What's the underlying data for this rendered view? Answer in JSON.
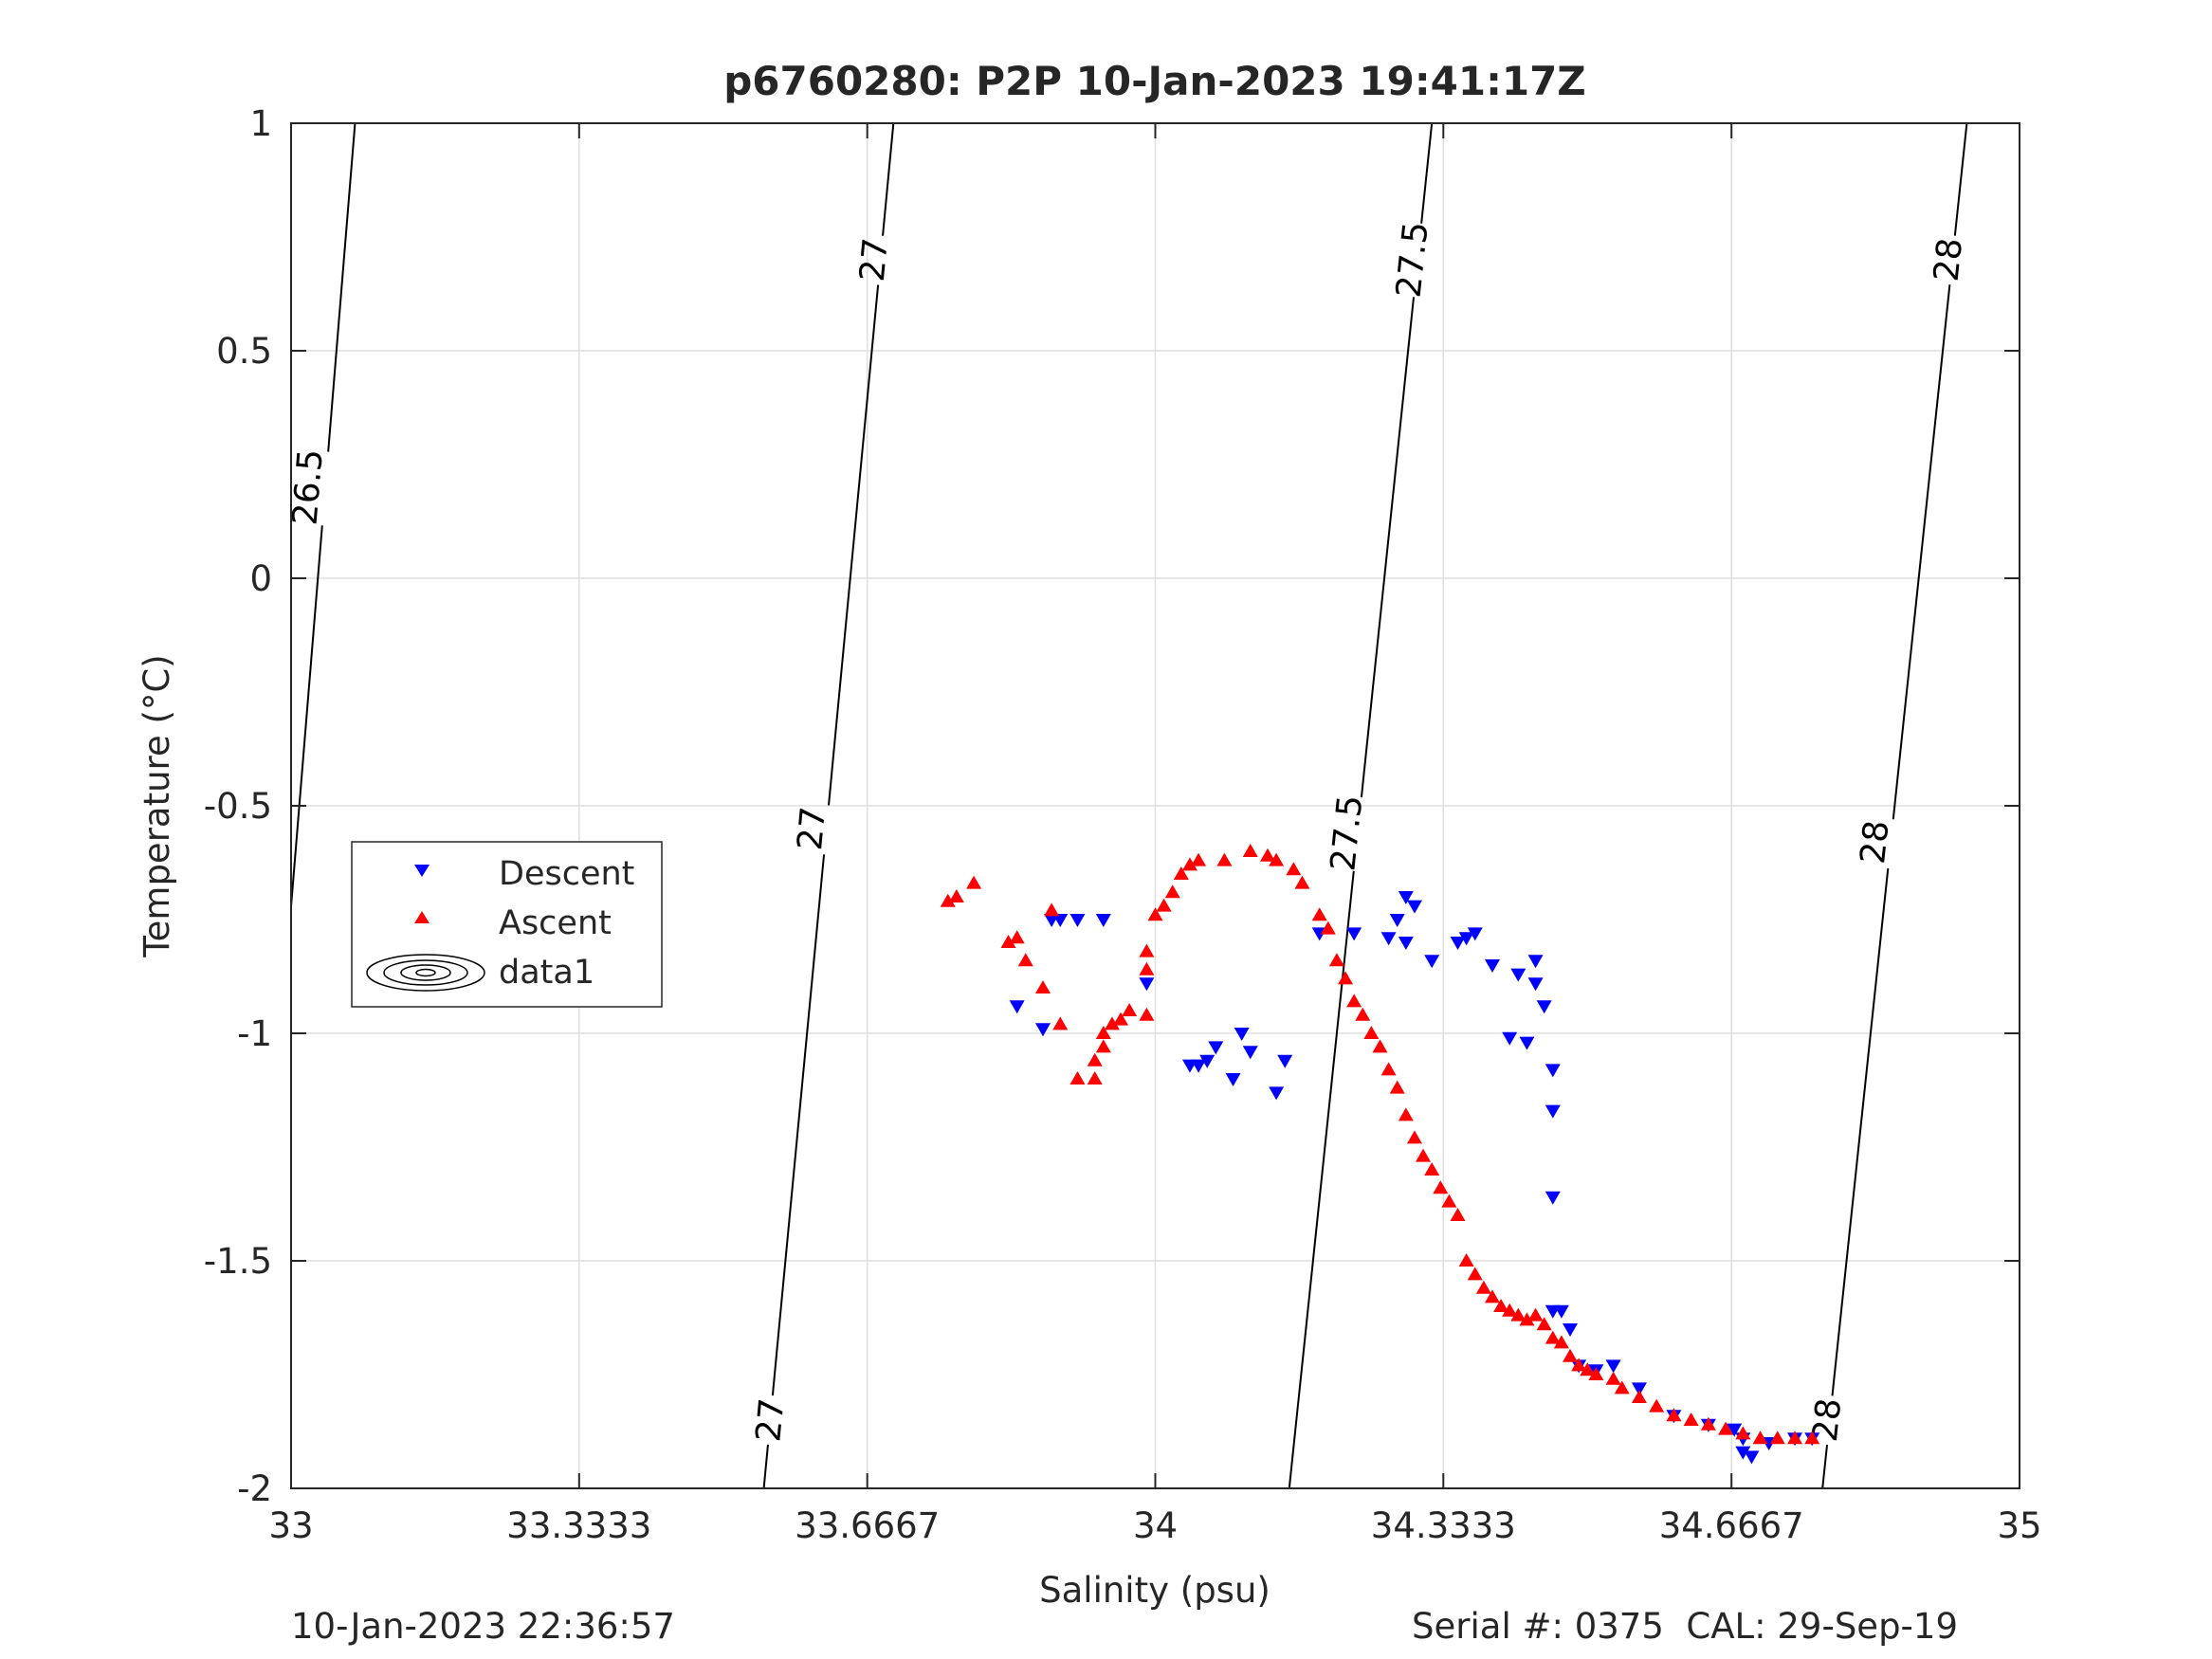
{
  "chart_data": {
    "type": "scatter",
    "title": "p6760280: P2P 10-Jan-2023 19:41:17Z",
    "xlabel": "Salinity (psu)",
    "ylabel": "Temperature (°C)",
    "xlim": [
      33,
      35
    ],
    "ylim": [
      -2,
      1
    ],
    "grid": true,
    "x_ticks": [
      33,
      33.3333,
      33.6667,
      34,
      34.3333,
      34.6667,
      35
    ],
    "x_tick_labels": [
      "33",
      "33.3333",
      "33.6667",
      "34",
      "34.3333",
      "34.6667",
      "35"
    ],
    "y_ticks": [
      -2,
      -1.5,
      -1,
      -0.5,
      0,
      0.5,
      1
    ],
    "y_tick_labels": [
      "-2",
      "-1.5",
      "-1",
      "-0.5",
      "0",
      "0.5",
      "1"
    ],
    "legend": {
      "placement": "middle-left",
      "entries": [
        "Descent",
        "Ascent",
        "data1"
      ]
    },
    "series": [
      {
        "name": "Descent",
        "marker": "triangle-down",
        "color": "#0000ff",
        "points": [
          [
            33.84,
            -0.94
          ],
          [
            33.87,
            -0.99
          ],
          [
            33.88,
            -0.75
          ],
          [
            33.89,
            -0.75
          ],
          [
            33.91,
            -0.75
          ],
          [
            33.94,
            -0.75
          ],
          [
            33.99,
            -0.89
          ],
          [
            34.04,
            -1.07
          ],
          [
            34.05,
            -1.07
          ],
          [
            34.06,
            -1.06
          ],
          [
            34.07,
            -1.03
          ],
          [
            34.09,
            -1.1
          ],
          [
            34.1,
            -1.0
          ],
          [
            34.11,
            -1.04
          ],
          [
            34.14,
            -1.13
          ],
          [
            34.15,
            -1.06
          ],
          [
            34.19,
            -0.78
          ],
          [
            34.23,
            -0.78
          ],
          [
            34.27,
            -0.79
          ],
          [
            34.28,
            -0.75
          ],
          [
            34.29,
            -0.7
          ],
          [
            34.3,
            -0.72
          ],
          [
            34.29,
            -0.8
          ],
          [
            34.32,
            -0.84
          ],
          [
            34.35,
            -0.8
          ],
          [
            34.36,
            -0.79
          ],
          [
            34.37,
            -0.78
          ],
          [
            34.39,
            -0.85
          ],
          [
            34.41,
            -1.01
          ],
          [
            34.42,
            -0.87
          ],
          [
            34.43,
            -1.02
          ],
          [
            34.44,
            -0.89
          ],
          [
            34.44,
            -0.84
          ],
          [
            34.45,
            -0.94
          ],
          [
            34.46,
            -1.08
          ],
          [
            34.46,
            -1.17
          ],
          [
            34.46,
            -1.36
          ],
          [
            34.46,
            -1.61
          ],
          [
            34.47,
            -1.61
          ],
          [
            34.48,
            -1.65
          ],
          [
            34.49,
            -1.73
          ],
          [
            34.51,
            -1.74
          ],
          [
            34.53,
            -1.73
          ],
          [
            34.56,
            -1.78
          ],
          [
            34.6,
            -1.84
          ],
          [
            34.64,
            -1.86
          ],
          [
            34.67,
            -1.87
          ],
          [
            34.68,
            -1.89
          ],
          [
            34.68,
            -1.92
          ],
          [
            34.69,
            -1.93
          ],
          [
            34.71,
            -1.9
          ],
          [
            34.74,
            -1.89
          ],
          [
            34.76,
            -1.89
          ]
        ]
      },
      {
        "name": "Ascent",
        "marker": "triangle-up",
        "color": "#ff0000",
        "points": [
          [
            33.76,
            -0.71
          ],
          [
            33.77,
            -0.7
          ],
          [
            33.79,
            -0.67
          ],
          [
            33.83,
            -0.8
          ],
          [
            33.84,
            -0.79
          ],
          [
            33.85,
            -0.84
          ],
          [
            33.87,
            -0.9
          ],
          [
            33.88,
            -0.73
          ],
          [
            33.89,
            -0.98
          ],
          [
            33.91,
            -1.1
          ],
          [
            33.93,
            -1.1
          ],
          [
            33.93,
            -1.06
          ],
          [
            33.94,
            -1.03
          ],
          [
            33.94,
            -1.0
          ],
          [
            33.95,
            -0.98
          ],
          [
            33.96,
            -0.97
          ],
          [
            33.97,
            -0.95
          ],
          [
            33.99,
            -0.96
          ],
          [
            33.99,
            -0.86
          ],
          [
            33.99,
            -0.82
          ],
          [
            34.0,
            -0.74
          ],
          [
            34.01,
            -0.72
          ],
          [
            34.02,
            -0.69
          ],
          [
            34.03,
            -0.65
          ],
          [
            34.04,
            -0.63
          ],
          [
            34.05,
            -0.62
          ],
          [
            34.08,
            -0.62
          ],
          [
            34.11,
            -0.6
          ],
          [
            34.13,
            -0.61
          ],
          [
            34.14,
            -0.62
          ],
          [
            34.16,
            -0.64
          ],
          [
            34.17,
            -0.67
          ],
          [
            34.19,
            -0.74
          ],
          [
            34.2,
            -0.77
          ],
          [
            34.21,
            -0.84
          ],
          [
            34.22,
            -0.88
          ],
          [
            34.23,
            -0.93
          ],
          [
            34.24,
            -0.96
          ],
          [
            34.25,
            -1.0
          ],
          [
            34.26,
            -1.03
          ],
          [
            34.27,
            -1.08
          ],
          [
            34.28,
            -1.12
          ],
          [
            34.29,
            -1.18
          ],
          [
            34.3,
            -1.23
          ],
          [
            34.31,
            -1.27
          ],
          [
            34.32,
            -1.3
          ],
          [
            34.33,
            -1.34
          ],
          [
            34.34,
            -1.37
          ],
          [
            34.35,
            -1.4
          ],
          [
            34.36,
            -1.5
          ],
          [
            34.37,
            -1.53
          ],
          [
            34.38,
            -1.56
          ],
          [
            34.39,
            -1.58
          ],
          [
            34.4,
            -1.6
          ],
          [
            34.41,
            -1.61
          ],
          [
            34.42,
            -1.62
          ],
          [
            34.43,
            -1.63
          ],
          [
            34.44,
            -1.62
          ],
          [
            34.45,
            -1.64
          ],
          [
            34.46,
            -1.67
          ],
          [
            34.47,
            -1.68
          ],
          [
            34.48,
            -1.71
          ],
          [
            34.49,
            -1.73
          ],
          [
            34.5,
            -1.74
          ],
          [
            34.51,
            -1.75
          ],
          [
            34.53,
            -1.76
          ],
          [
            34.54,
            -1.78
          ],
          [
            34.56,
            -1.8
          ],
          [
            34.58,
            -1.82
          ],
          [
            34.6,
            -1.84
          ],
          [
            34.62,
            -1.85
          ],
          [
            34.64,
            -1.86
          ],
          [
            34.66,
            -1.87
          ],
          [
            34.68,
            -1.88
          ],
          [
            34.7,
            -1.89
          ],
          [
            34.72,
            -1.89
          ],
          [
            34.74,
            -1.89
          ],
          [
            34.76,
            -1.89
          ]
        ]
      }
    ],
    "density_contours": [
      {
        "label": "26.5",
        "x_at_top": 33.074,
        "x_at_bottom": 32.945,
        "label_positions": [
          [
            33.02,
            0.2
          ]
        ]
      },
      {
        "label": "27",
        "x_at_top": 33.697,
        "x_at_bottom": 33.547,
        "label_positions": [
          [
            33.675,
            0.7
          ],
          [
            33.603,
            -0.55
          ],
          [
            33.555,
            -1.85
          ]
        ]
      },
      {
        "label": "27.5",
        "x_at_top": 34.32,
        "x_at_bottom": 34.155,
        "label_positions": [
          [
            34.298,
            0.7
          ],
          [
            34.222,
            -0.56
          ]
        ]
      },
      {
        "label": "28",
        "x_at_top": 34.939,
        "x_at_bottom": 34.772,
        "label_positions": [
          [
            34.918,
            0.7
          ],
          [
            34.833,
            -0.58
          ],
          [
            34.778,
            -1.85
          ]
        ]
      }
    ]
  },
  "footer": {
    "timestamp": "10-Jan-2023 22:36:57",
    "serial": "Serial #: 0375  CAL: 29-Sep-19"
  },
  "colors": {
    "axis": "#262626",
    "grid": "#dfdfdf",
    "descent": "#0000ff",
    "ascent": "#ff0000"
  }
}
